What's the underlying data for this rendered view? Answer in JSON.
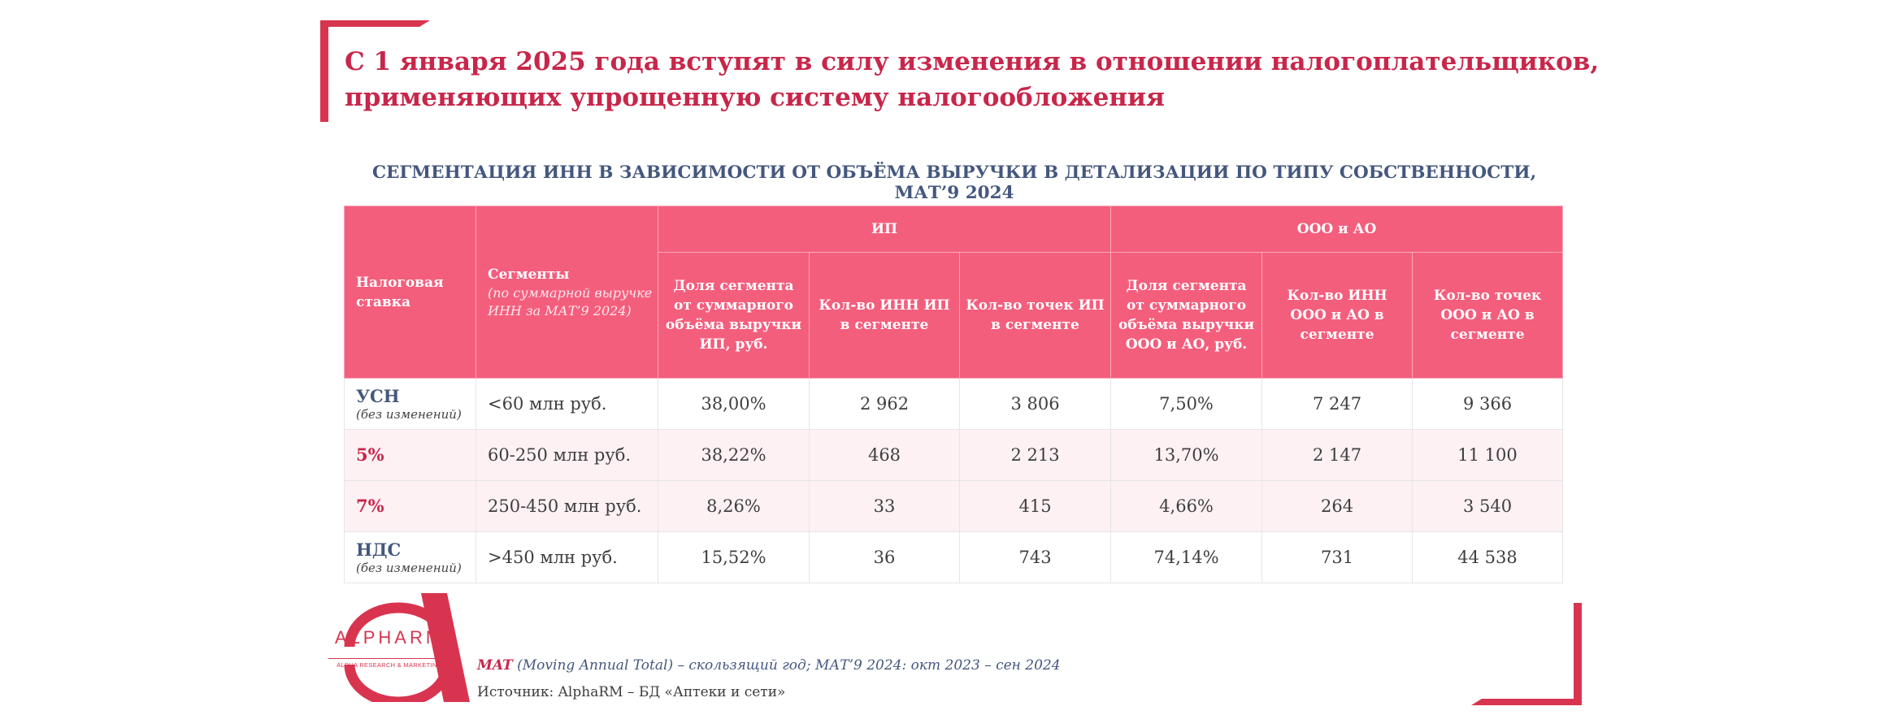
{
  "title": "С 1 января 2025 года вступят в силу изменения в отношении налогоплательщиков, применяющих упрощенную систему налогообложения",
  "subtitle": "СЕГМЕНТАЦИЯ ИНН В ЗАВИСИМОСТИ ОТ ОБЪЁМА ВЫРУЧКИ В ДЕТАЛИЗАЦИИ ПО ТИПУ СОБСТВЕННОСТИ, МАТ’9 2024",
  "table": {
    "head": {
      "rate": "Налоговая ставка",
      "segments": "Сегменты",
      "segments_sub": "(по суммарной выручке ИНН за МАТ’9 2024)",
      "group_ip": "ИП",
      "group_ooo": "ООО и АО",
      "ip_share": "Доля сегмента от суммарного объёма выручки ИП, руб.",
      "ip_inn": "Кол-во ИНН ИП в сегменте",
      "ip_points": "Кол-во точек ИП в сегменте",
      "ooo_share": "Доля сегмента от суммарного объёма выручки ООО и АО, руб.",
      "ooo_inn": "Кол-во ИНН ООО и АО в сегменте",
      "ooo_points": "Кол-во точек ООО и АО в сегменте"
    },
    "rows": [
      {
        "rate": "УСН",
        "note": "(без изменений)",
        "segment": "<60 млн руб.",
        "ip_share": "38,00%",
        "ip_inn": "2 962",
        "ip_points": "3 806",
        "ooo_share": "7,50%",
        "ooo_inn": "7 247",
        "ooo_points": "9 366"
      },
      {
        "rate": "5%",
        "note": "",
        "segment": "60-250 млн руб.",
        "ip_share": "38,22%",
        "ip_inn": "468",
        "ip_points": "2 213",
        "ooo_share": "13,70%",
        "ooo_inn": "2 147",
        "ooo_points": "11 100"
      },
      {
        "rate": "7%",
        "note": "",
        "segment": "250-450 млн руб.",
        "ip_share": "8,26%",
        "ip_inn": "33",
        "ip_points": "415",
        "ooo_share": "4,66%",
        "ooo_inn": "264",
        "ooo_points": "3 540"
      },
      {
        "rate": "НДС",
        "note": "(без изменений)",
        "segment": ">450 млн руб.",
        "ip_share": "15,52%",
        "ip_inn": "36",
        "ip_points": "743",
        "ooo_share": "74,14%",
        "ooo_inn": "731",
        "ooo_points": "44 538"
      }
    ]
  },
  "logo": {
    "name": "ALPHARM",
    "tagline": "ALPHA RESEARCH & MARKETING"
  },
  "footnote": {
    "term": "MAT",
    "text": " (Moving Annual Total) – скользящий год; МАТ’9 2024: окт 2023 – сен 2024"
  },
  "source": "Источник: AlphaRM – БД «Аптеки и сети»",
  "colors": {
    "accent": "#c8264a",
    "header_bg": "#f45e7d",
    "navy": "#44577e",
    "row_alt": "#fdf1f4"
  }
}
